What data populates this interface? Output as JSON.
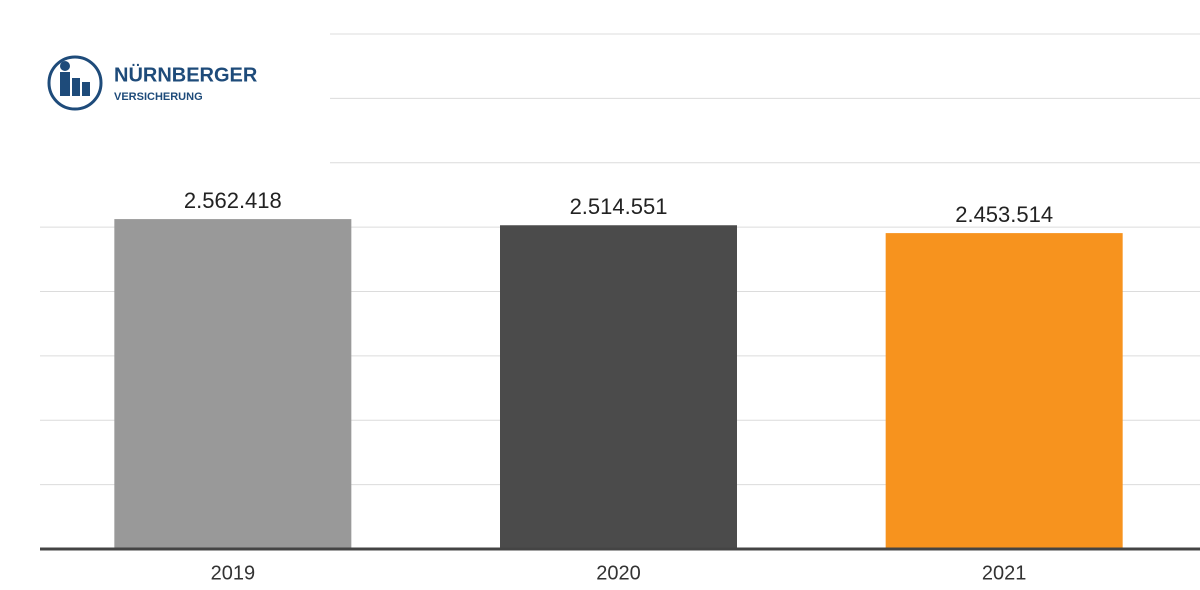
{
  "logo": {
    "name": "NÜRNBERGER",
    "subtitle": "VERSICHERUNG"
  },
  "chart_data": {
    "type": "bar",
    "categories": [
      "2019",
      "2020",
      "2021"
    ],
    "values": [
      2562418,
      2514551,
      2453514
    ],
    "value_labels": [
      "2.562.418",
      "2.514.551",
      "2.453.514"
    ],
    "colors": [
      "#999999",
      "#4b4b4b",
      "#f7931e"
    ],
    "ylim": [
      0,
      4000000
    ],
    "yticks": [
      0,
      500000,
      1000000,
      1500000,
      2000000,
      2500000,
      3000000,
      3500000,
      4000000
    ],
    "grid": true
  }
}
